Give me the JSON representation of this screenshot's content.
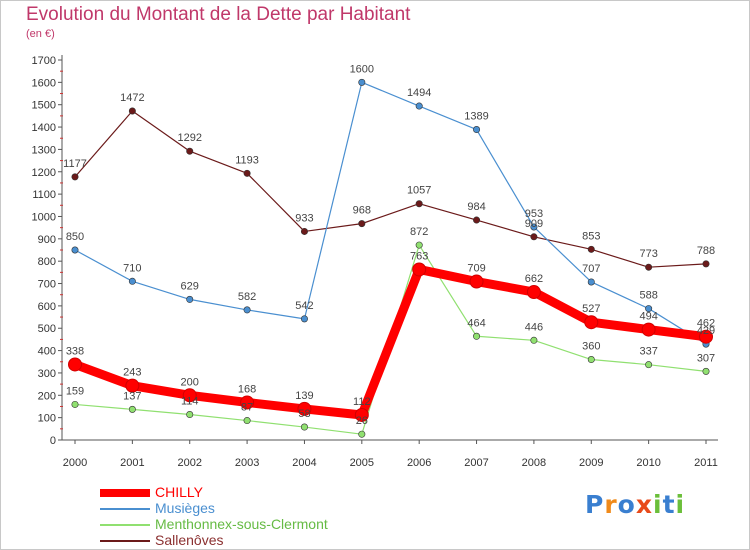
{
  "chart_data": {
    "type": "line",
    "title": "Evolution du Montant de la Dette par Habitant",
    "subtitle": "(en €)",
    "categories": [
      "2000",
      "2001",
      "2002",
      "2003",
      "2004",
      "2005",
      "2006",
      "2007",
      "2008",
      "2009",
      "2010",
      "2011"
    ],
    "ylim": [
      0,
      1700
    ],
    "yticks": [
      0,
      100,
      200,
      300,
      400,
      500,
      600,
      700,
      800,
      900,
      1000,
      1100,
      1200,
      1300,
      1400,
      1500,
      1600,
      1700
    ],
    "grid": false,
    "legend_position": "bottom-left",
    "series": [
      {
        "name": "Sallenôves",
        "color": "#6b1a1a",
        "values": [
          1177,
          1472,
          1292,
          1193,
          933,
          968,
          1057,
          984,
          909,
          853,
          773,
          788
        ]
      },
      {
        "name": "Musièges",
        "color": "#4a8fd0",
        "values": [
          850,
          710,
          629,
          582,
          542,
          1600,
          1494,
          1389,
          953,
          707,
          588,
          429
        ]
      },
      {
        "name": "Menthonnex-sous-Clermont",
        "color": "#90e070",
        "values": [
          159,
          137,
          114,
          87,
          58,
          26,
          872,
          464,
          446,
          360,
          337,
          307
        ]
      },
      {
        "name": "CHILLY",
        "color": "#ff0000",
        "values": [
          338,
          243,
          200,
          168,
          139,
          112,
          763,
          709,
          662,
          527,
          494,
          462
        ]
      }
    ]
  },
  "legend": [
    {
      "name": "CHILLY",
      "color": "#ff0000",
      "label_color": "#ff0000",
      "thick": true
    },
    {
      "name": "Musièges",
      "color": "#4a8fd0",
      "label_color": "#4a8fd0",
      "thick": false
    },
    {
      "name": "Menthonnex-sous-Clermont",
      "color": "#90e070",
      "label_color": "#66bb44",
      "thick": false
    },
    {
      "name": "Sallenôves",
      "color": "#6b1a1a",
      "label_color": "#8b3030",
      "thick": false
    }
  ],
  "brand": {
    "letters": [
      "P",
      "r",
      "o",
      "x",
      "i",
      "t",
      "i"
    ],
    "colors": [
      "#3a7fd0",
      "#f08a1a",
      "#3a7fd0",
      "#e84a1a",
      "#6bbf3a",
      "#3a7fd0",
      "#6bbf3a"
    ]
  }
}
